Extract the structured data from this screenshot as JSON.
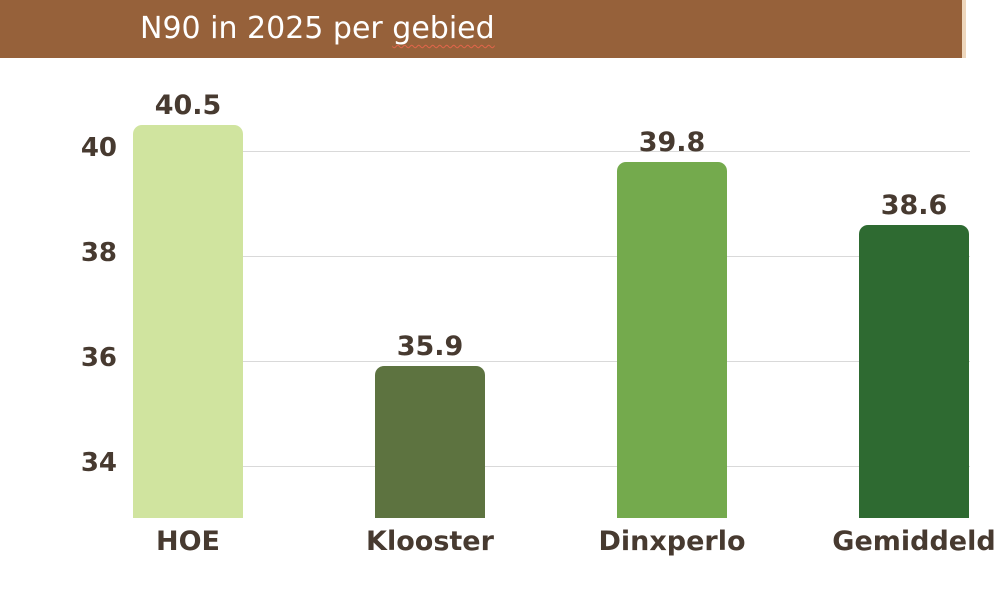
{
  "header": {
    "title": "N90 in 2025 per gebied",
    "title_prefix": "N90 in 2025 per ",
    "title_flagged_word": "gebied",
    "background_color": "#96613a",
    "edge_color": "#eed7bd",
    "text_color": "#ffffff",
    "spellcheck_underline_color": "#e2654a"
  },
  "chart_data": {
    "type": "bar",
    "title": "N90 in 2025 per gebied",
    "categories": [
      "HOE",
      "Klooster",
      "Dinxperlo",
      "Gemiddeld"
    ],
    "values": [
      40.5,
      35.9,
      39.8,
      38.6
    ],
    "data_labels": [
      "40.5",
      "35.9",
      "39.8",
      "38.6"
    ],
    "bar_colors": [
      "#d0e49f",
      "#5d7340",
      "#74aa4d",
      "#2e6a31"
    ],
    "yticks": [
      34,
      36,
      38,
      40
    ],
    "ytick_labels": [
      "34",
      "36",
      "38",
      "40"
    ],
    "ylim": [
      33,
      41.2
    ],
    "xlabel": "",
    "ylabel": "",
    "grid": true,
    "gridline_color": "#d9d9d9",
    "label_color": "#473a30",
    "legend": false
  }
}
